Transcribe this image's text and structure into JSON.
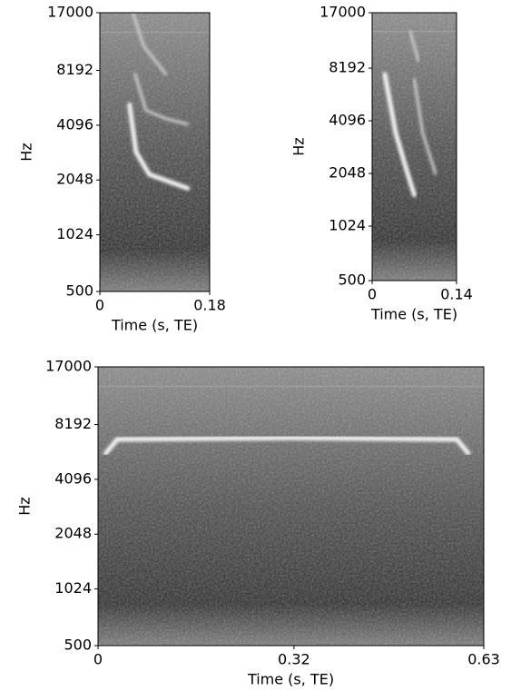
{
  "chart_data": [
    {
      "type": "spectrogram",
      "xlabel": "Time (s, TE)",
      "ylabel": "Hz",
      "xlim": [
        0,
        0.18
      ],
      "xticks": [
        0,
        0.18
      ],
      "ylim": [
        500,
        17000
      ],
      "yticks": [
        500,
        1024,
        2048,
        4096,
        8192,
        17000
      ],
      "yscale": "log"
    },
    {
      "type": "spectrogram",
      "xlabel": "Time (s, TE)",
      "ylabel": "Hz",
      "xlim": [
        0,
        0.14
      ],
      "xticks": [
        0,
        0.14
      ],
      "ylim": [
        500,
        17000
      ],
      "yticks": [
        500,
        1024,
        2048,
        4096,
        8192,
        17000
      ],
      "yscale": "log"
    },
    {
      "type": "spectrogram",
      "xlabel": "Time (s, TE)",
      "ylabel": "Hz",
      "xlim": [
        0,
        0.63
      ],
      "xticks": [
        0,
        0.32,
        0.63
      ],
      "ylim": [
        500,
        17000
      ],
      "yticks": [
        500,
        1024,
        2048,
        4096,
        8192,
        17000
      ],
      "yscale": "log"
    }
  ]
}
